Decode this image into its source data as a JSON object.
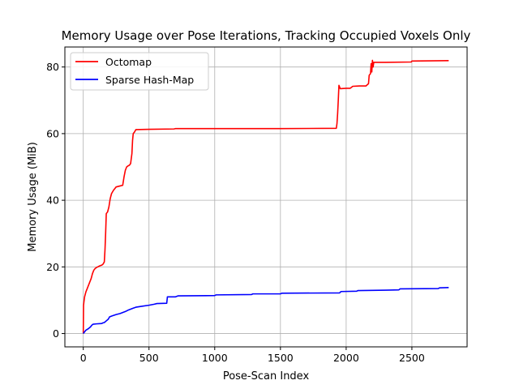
{
  "chart_data": {
    "type": "line",
    "title": "Memory Usage over Pose Iterations, Tracking Occupied Voxels Only",
    "xlabel": "Pose-Scan Index",
    "ylabel": "Memory Usage (MiB)",
    "xlim": [
      -140,
      2920
    ],
    "ylim": [
      -4,
      86
    ],
    "xticks": [
      0,
      500,
      1000,
      1500,
      2000,
      2500
    ],
    "yticks": [
      0,
      20,
      40,
      60,
      80
    ],
    "grid": true,
    "legend_position": "top-left",
    "series": [
      {
        "name": "Octomap",
        "color": "#ff0000",
        "points": [
          [
            0,
            0
          ],
          [
            2,
            8.5
          ],
          [
            5,
            9.5
          ],
          [
            10,
            11
          ],
          [
            20,
            12.5
          ],
          [
            30,
            13.5
          ],
          [
            40,
            14.5
          ],
          [
            50,
            15.5
          ],
          [
            60,
            16.5
          ],
          [
            70,
            18
          ],
          [
            80,
            19
          ],
          [
            90,
            19.5
          ],
          [
            100,
            19.8
          ],
          [
            110,
            20
          ],
          [
            120,
            20.2
          ],
          [
            130,
            20.4
          ],
          [
            140,
            20.5
          ],
          [
            150,
            20.8
          ],
          [
            160,
            21.5
          ],
          [
            165,
            25
          ],
          [
            170,
            30
          ],
          [
            175,
            36
          ],
          [
            185,
            36.5
          ],
          [
            195,
            38
          ],
          [
            205,
            40.5
          ],
          [
            215,
            42
          ],
          [
            230,
            43
          ],
          [
            240,
            43.5
          ],
          [
            250,
            44
          ],
          [
            280,
            44.3
          ],
          [
            300,
            44.5
          ],
          [
            310,
            47
          ],
          [
            320,
            49
          ],
          [
            330,
            50
          ],
          [
            340,
            50.3
          ],
          [
            350,
            50.5
          ],
          [
            360,
            51
          ],
          [
            370,
            54
          ],
          [
            375,
            58
          ],
          [
            380,
            60
          ],
          [
            390,
            60.5
          ],
          [
            400,
            61.2
          ],
          [
            500,
            61.3
          ],
          [
            690,
            61.4
          ],
          [
            700,
            61.5
          ],
          [
            1000,
            61.5
          ],
          [
            1500,
            61.5
          ],
          [
            1925,
            61.6
          ],
          [
            1930,
            63
          ],
          [
            1935,
            66
          ],
          [
            1940,
            70
          ],
          [
            1945,
            74.5
          ],
          [
            1955,
            73.5
          ],
          [
            2000,
            73.6
          ],
          [
            2030,
            73.6
          ],
          [
            2050,
            74.2
          ],
          [
            2100,
            74.3
          ],
          [
            2150,
            74.3
          ],
          [
            2170,
            75
          ],
          [
            2175,
            77.5
          ],
          [
            2185,
            78
          ],
          [
            2190,
            81
          ],
          [
            2195,
            78.5
          ],
          [
            2200,
            82
          ],
          [
            2205,
            80
          ],
          [
            2210,
            81.4
          ],
          [
            2300,
            81.4
          ],
          [
            2495,
            81.5
          ],
          [
            2500,
            81.8
          ],
          [
            2780,
            81.9
          ]
        ]
      },
      {
        "name": "Sparse Hash-Map",
        "color": "#0000ff",
        "points": [
          [
            0,
            0
          ],
          [
            10,
            0.5
          ],
          [
            20,
            1
          ],
          [
            40,
            1.5
          ],
          [
            55,
            2
          ],
          [
            65,
            2.5
          ],
          [
            75,
            2.8
          ],
          [
            100,
            2.9
          ],
          [
            140,
            3
          ],
          [
            150,
            3.2
          ],
          [
            160,
            3.3
          ],
          [
            175,
            3.8
          ],
          [
            190,
            4.3
          ],
          [
            200,
            5
          ],
          [
            220,
            5.3
          ],
          [
            250,
            5.7
          ],
          [
            280,
            6
          ],
          [
            300,
            6.3
          ],
          [
            320,
            6.6
          ],
          [
            340,
            7
          ],
          [
            360,
            7.3
          ],
          [
            380,
            7.6
          ],
          [
            400,
            7.9
          ],
          [
            450,
            8.2
          ],
          [
            500,
            8.5
          ],
          [
            540,
            8.8
          ],
          [
            560,
            9
          ],
          [
            635,
            9.1
          ],
          [
            640,
            11
          ],
          [
            700,
            11
          ],
          [
            720,
            11.3
          ],
          [
            1000,
            11.4
          ],
          [
            1010,
            11.6
          ],
          [
            1280,
            11.7
          ],
          [
            1290,
            11.9
          ],
          [
            1500,
            11.9
          ],
          [
            1510,
            12.1
          ],
          [
            1950,
            12.2
          ],
          [
            1960,
            12.6
          ],
          [
            2080,
            12.7
          ],
          [
            2090,
            12.9
          ],
          [
            2300,
            13
          ],
          [
            2400,
            13.1
          ],
          [
            2410,
            13.4
          ],
          [
            2700,
            13.5
          ],
          [
            2710,
            13.7
          ],
          [
            2780,
            13.8
          ]
        ]
      }
    ]
  }
}
